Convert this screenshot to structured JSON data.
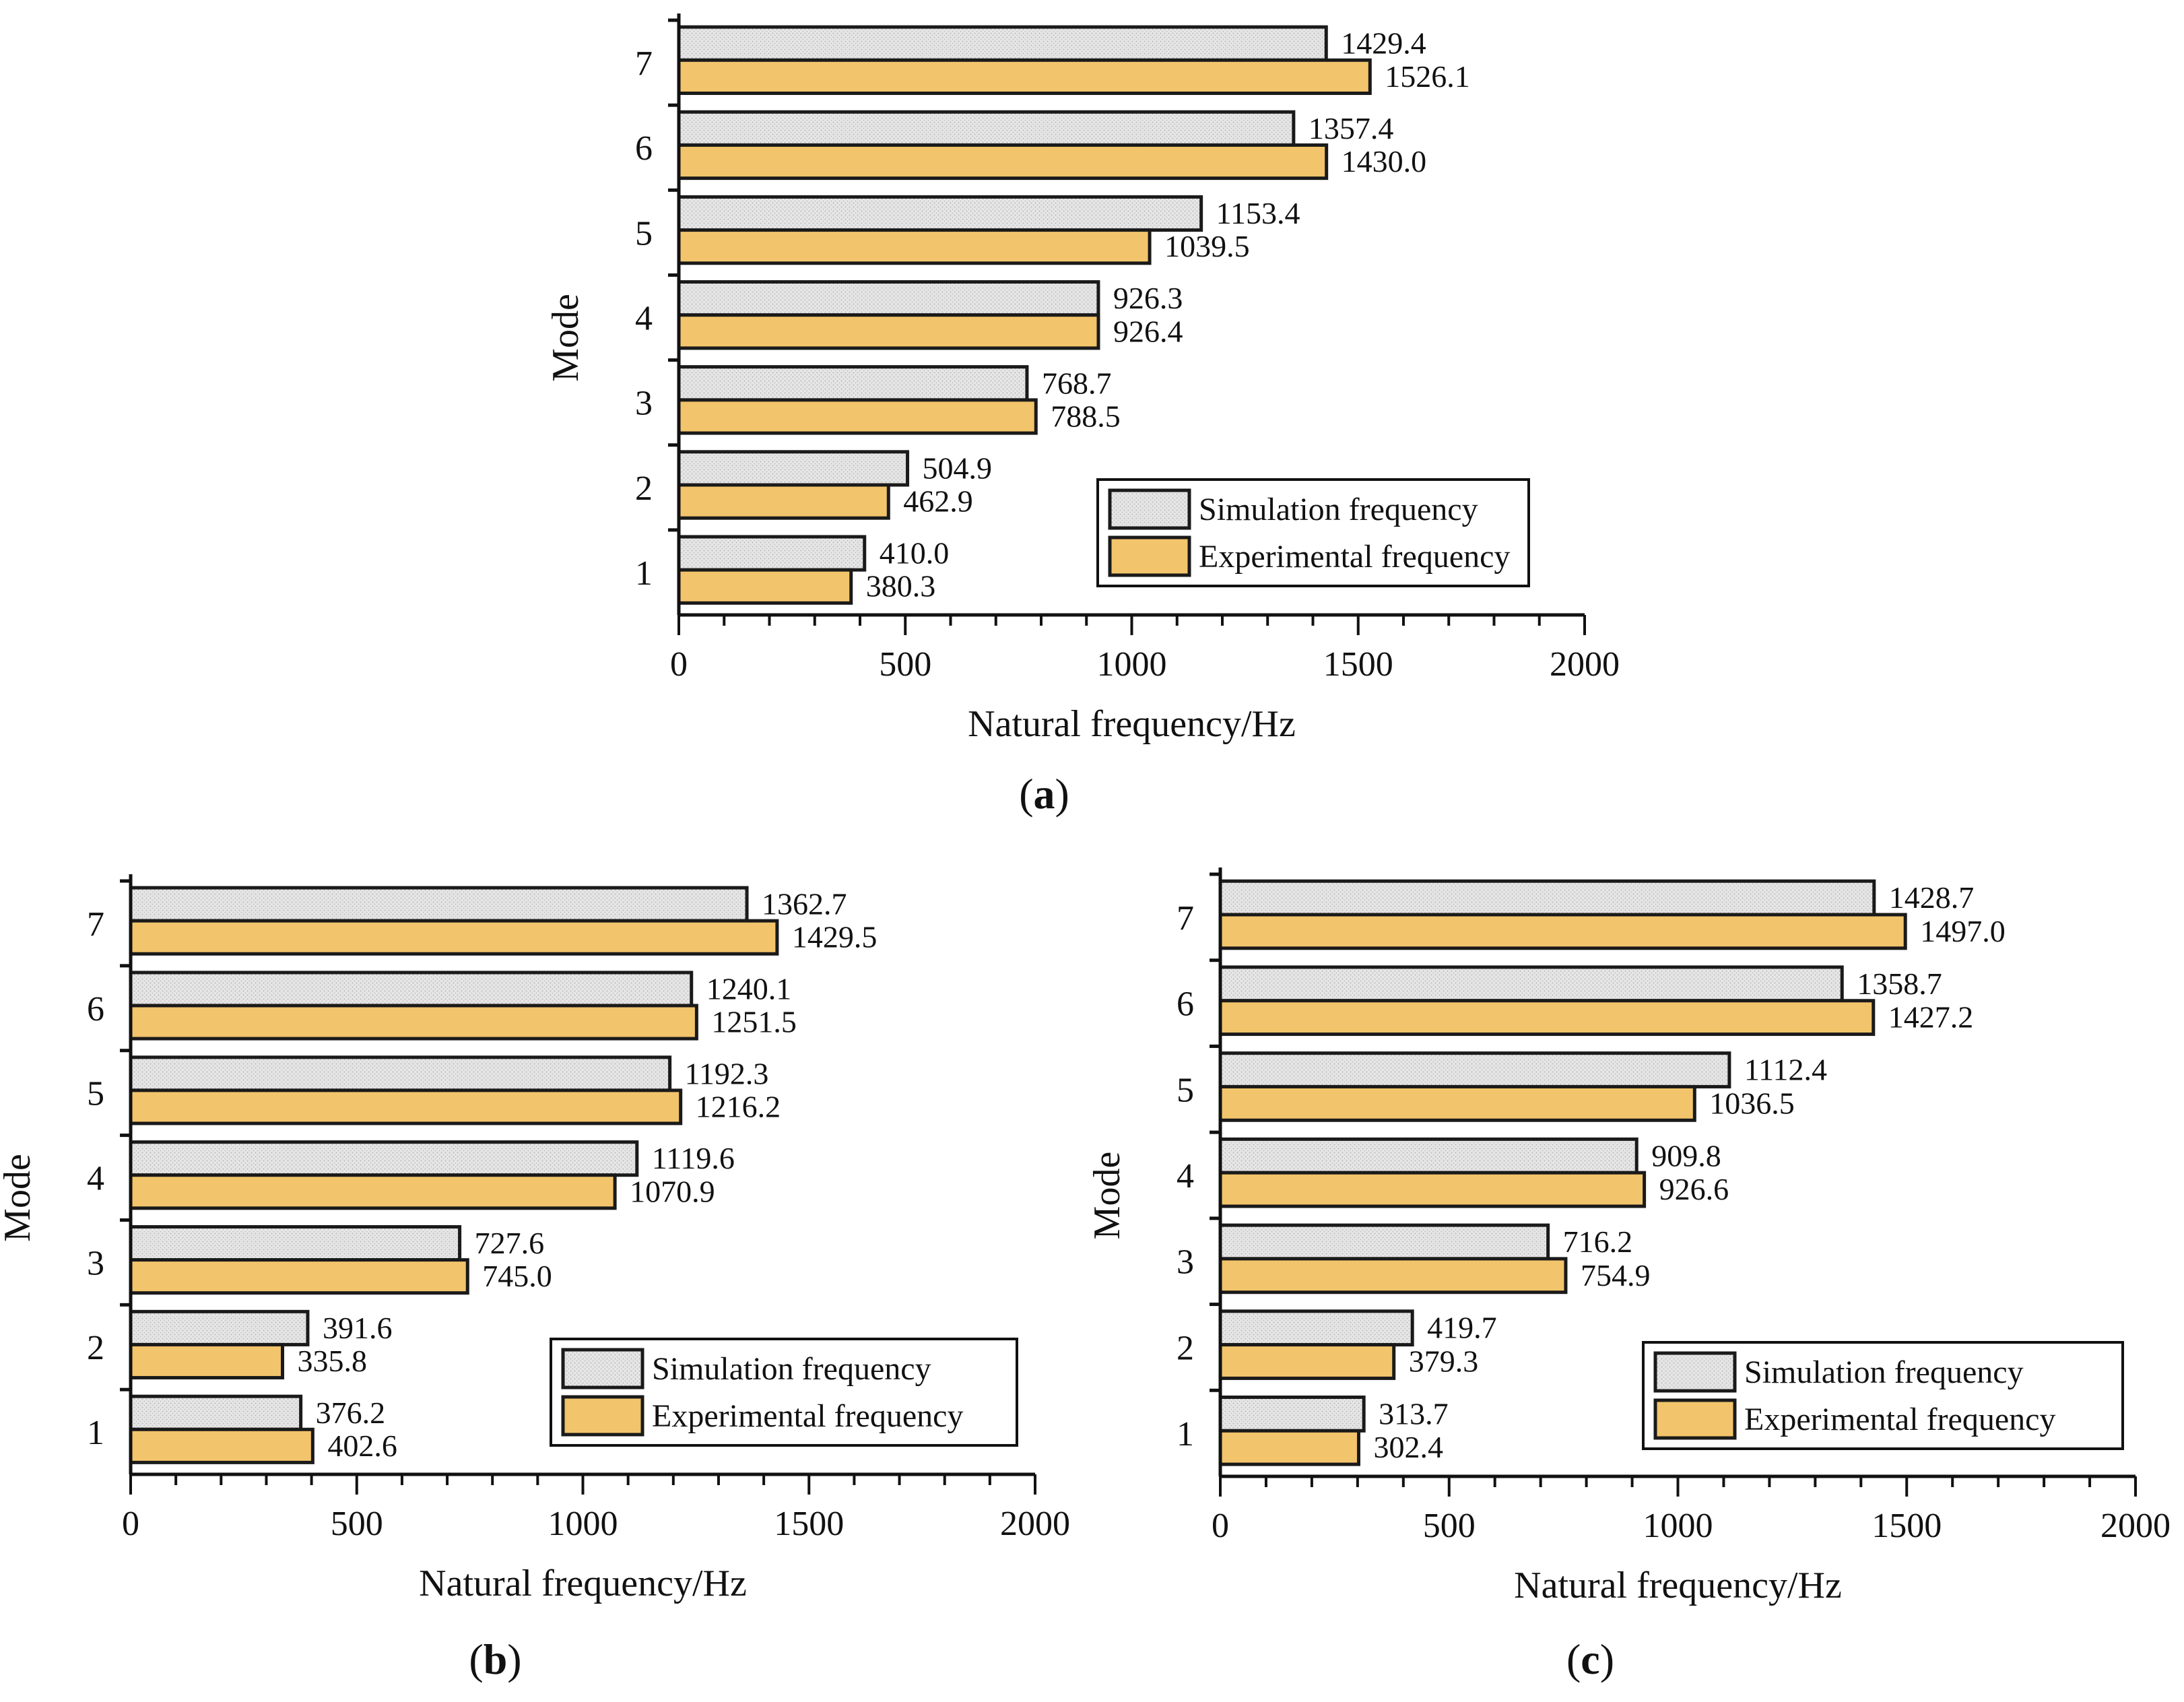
{
  "colors": {
    "simulation_fill": "#e3e3e3",
    "experimental_fill": "#f2c46b",
    "bar_stroke": "#1a1a1a",
    "axis": "#111111"
  },
  "chart_data": [
    {
      "id": "a",
      "type": "bar",
      "orientation": "horizontal",
      "panel_label": "a",
      "categories": [
        "1",
        "2",
        "3",
        "4",
        "5",
        "6",
        "7"
      ],
      "series": [
        {
          "name": "Simulation frequency",
          "values": [
            410.0,
            504.9,
            768.7,
            926.3,
            1153.4,
            1357.4,
            1429.4
          ],
          "labels": [
            "410.0",
            "504.9",
            "768.7",
            "926.3",
            "1153.4",
            "1357.4",
            "1429.4"
          ]
        },
        {
          "name": "Experimental frequency",
          "values": [
            380.3,
            462.9,
            788.5,
            926.4,
            1039.5,
            1430.0,
            1526.1
          ],
          "labels": [
            "380.3",
            "462.9",
            "788.5",
            "926.4",
            "1039.5",
            "1430.0",
            "1526.1"
          ]
        }
      ],
      "xlabel": "Natural frequency/Hz",
      "ylabel": "Mode",
      "xlim": [
        0,
        2000
      ],
      "xticks": [
        "0",
        "500",
        "1000",
        "1500",
        "2000"
      ],
      "legend_position": "bottom-right",
      "grid": false
    },
    {
      "id": "b",
      "type": "bar",
      "orientation": "horizontal",
      "panel_label": "b",
      "categories": [
        "1",
        "2",
        "3",
        "4",
        "5",
        "6",
        "7"
      ],
      "series": [
        {
          "name": "Simulation frequency",
          "values": [
            376.2,
            391.6,
            727.6,
            1119.6,
            1192.3,
            1240.1,
            1362.7
          ],
          "labels": [
            "376.2",
            "391.6",
            "727.6",
            "1119.6",
            "1192.3",
            "1240.1",
            "1362.7"
          ]
        },
        {
          "name": "Experimental frequency",
          "values": [
            402.6,
            335.8,
            745.0,
            1070.9,
            1216.2,
            1251.5,
            1429.5
          ],
          "labels": [
            "402.6",
            "335.8",
            "745.0",
            "1070.9",
            "1216.2",
            "1251.5",
            "1429.5"
          ]
        }
      ],
      "xlabel": "Natural frequency/Hz",
      "ylabel": "Mode",
      "xlim": [
        0,
        2000
      ],
      "xticks": [
        "0",
        "500",
        "1000",
        "1500",
        "2000"
      ],
      "legend_position": "bottom-right",
      "grid": false
    },
    {
      "id": "c",
      "type": "bar",
      "orientation": "horizontal",
      "panel_label": "c",
      "categories": [
        "1",
        "2",
        "3",
        "4",
        "5",
        "6",
        "7"
      ],
      "series": [
        {
          "name": "Simulation frequency",
          "values": [
            313.7,
            419.7,
            716.2,
            909.8,
            1112.4,
            1358.7,
            1428.7
          ],
          "labels": [
            "313.7",
            "419.7",
            "716.2",
            "909.8",
            "1112.4",
            "1358.7",
            "1428.7"
          ]
        },
        {
          "name": "Experimental frequency",
          "values": [
            302.4,
            379.3,
            754.9,
            926.6,
            1036.5,
            1427.2,
            1497.0
          ],
          "labels": [
            "302.4",
            "379.3",
            "754.9",
            "926.6",
            "1036.5",
            "1427.2",
            "1497.0"
          ]
        }
      ],
      "xlabel": "Natural frequency/Hz",
      "ylabel": "Mode",
      "xlim": [
        0,
        2000
      ],
      "xticks": [
        "0",
        "500",
        "1000",
        "1500",
        "2000"
      ],
      "legend_position": "bottom-right",
      "grid": false
    }
  ]
}
